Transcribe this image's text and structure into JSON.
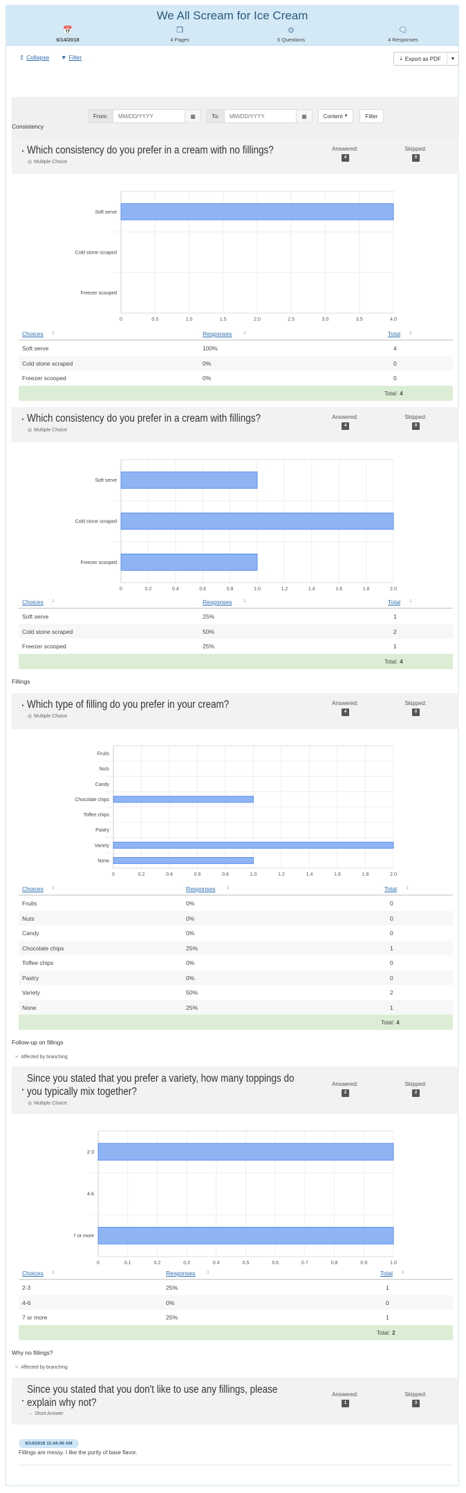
{
  "header": {
    "title": "We All Scream for Ice Cream",
    "stats": [
      {
        "icon": "calendar-icon",
        "glyph": "📅",
        "label": "6/14/2018"
      },
      {
        "icon": "pages-icon",
        "glyph": "❐",
        "label": "4 Pages"
      },
      {
        "icon": "question-target-icon",
        "glyph": "⊙",
        "label": "5 Questions"
      },
      {
        "icon": "chat-bubbles-icon",
        "glyph": "🗨",
        "label": "4 Responses"
      }
    ]
  },
  "toolbar": {
    "collapse": "Collapse",
    "filter": "Filter",
    "export": "Export as PDF"
  },
  "filter_panel": {
    "from_label": "From:",
    "from_placeholder": "MM/DD/YYYY",
    "to_label": "To:",
    "to_placeholder": "MM/DD/YYYY",
    "content": "Content",
    "filter": "Filter"
  },
  "colors": {
    "header_bg": "#d4e9f6",
    "bar": "#8fb4f4",
    "bar_border": "#5b8ef0",
    "total_row": "#dcedd5"
  },
  "sections": [
    {
      "label": "Consistency"
    },
    {
      "label": "Fillings"
    },
    {
      "label": "Follow-up on fillings",
      "branching": "Affected by branching"
    },
    {
      "label": "Why no fillings?",
      "branching": "Affected by branching"
    }
  ],
  "questions": [
    {
      "title": "Which consistency do you prefer in a cream with no fillings?",
      "type": "Multiple Choice",
      "answered_label": "Answered:",
      "answered": "4",
      "skipped_label": "Skipped:",
      "skipped": "0",
      "table_headers": [
        "Choices",
        "Responses",
        "Total"
      ],
      "rows": [
        [
          "Soft serve",
          "100%",
          "4"
        ],
        [
          "Cold stone scraped",
          "0%",
          "0"
        ],
        [
          "Freezer scooped",
          "0%",
          "0"
        ]
      ],
      "total_label": "Total:",
      "total": "4"
    },
    {
      "title": "Which consistency do you prefer in a cream with fillings?",
      "type": "Multiple Choice",
      "answered_label": "Answered:",
      "answered": "4",
      "skipped_label": "Skipped:",
      "skipped": "0",
      "table_headers": [
        "Choices",
        "Responses",
        "Total"
      ],
      "rows": [
        [
          "Soft serve",
          "25%",
          "1"
        ],
        [
          "Cold stone scraped",
          "50%",
          "2"
        ],
        [
          "Freezer scooped",
          "25%",
          "1"
        ]
      ],
      "total_label": "Total:",
      "total": "4"
    },
    {
      "title": "Which type of filling do you prefer in your cream?",
      "type": "Multiple Choice",
      "answered_label": "Answered:",
      "answered": "4",
      "skipped_label": "Skipped:",
      "skipped": "0",
      "table_headers": [
        "Choices",
        "Responses",
        "Total"
      ],
      "rows": [
        [
          "Fruits",
          "0%",
          "0"
        ],
        [
          "Nuts",
          "0%",
          "0"
        ],
        [
          "Candy",
          "0%",
          "0"
        ],
        [
          "Chocolate chips",
          "25%",
          "1"
        ],
        [
          "Toffee chips",
          "0%",
          "0"
        ],
        [
          "Pastry",
          "0%",
          "0"
        ],
        [
          "Variety",
          "50%",
          "2"
        ],
        [
          "None",
          "25%",
          "1"
        ]
      ],
      "total_label": "Total:",
      "total": "4"
    },
    {
      "title": "Since you stated that you prefer a variety, how many toppings do you typically mix together?",
      "type": "Multiple Choice",
      "answered_label": "Answered:",
      "answered": "2",
      "skipped_label": "Skipped:",
      "skipped": "2",
      "table_headers": [
        "Choices",
        "Responses",
        "Total"
      ],
      "rows": [
        [
          "2-3",
          "25%",
          "1"
        ],
        [
          "4-6",
          "0%",
          "0"
        ],
        [
          "7 or more",
          "25%",
          "1"
        ]
      ],
      "total_label": "Total:",
      "total": "2"
    },
    {
      "title": "Since you stated that you don't like to use any fillings, please explain why not?",
      "type": "Short Answer",
      "answered_label": "Answered:",
      "answered": "1",
      "skipped_label": "Skipped:",
      "skipped": "3",
      "responses": [
        {
          "timestamp": "6/14/2018 11:44:40 AM",
          "text": "Fillings are messy. I like the purity of base flavor."
        }
      ]
    }
  ],
  "chart_data": [
    {
      "type": "bar",
      "orientation": "horizontal",
      "categories": [
        "Soft serve",
        "Cold stone scraped",
        "Freezer scooped"
      ],
      "values": [
        4,
        0,
        0
      ],
      "xlim": [
        0,
        4
      ],
      "xticks": [
        "0",
        "0.5",
        "1.0",
        "1.5",
        "2.0",
        "2.5",
        "3.0",
        "3.5",
        "4.0"
      ],
      "grid": true
    },
    {
      "type": "bar",
      "orientation": "horizontal",
      "categories": [
        "Soft serve",
        "Cold stone scraped",
        "Freezer scooped"
      ],
      "values": [
        1,
        2,
        1
      ],
      "xlim": [
        0,
        2
      ],
      "xticks": [
        "0",
        "0.2",
        "0.4",
        "0.6",
        "0.8",
        "1.0",
        "1.2",
        "1.4",
        "1.6",
        "1.8",
        "2.0"
      ],
      "grid": true
    },
    {
      "type": "bar",
      "orientation": "horizontal",
      "categories": [
        "Fruits",
        "Nuts",
        "Candy",
        "Chocolate chips",
        "Toffee chips",
        "Pastry",
        "Variety",
        "None"
      ],
      "values": [
        0,
        0,
        0,
        1,
        0,
        0,
        2,
        1
      ],
      "xlim": [
        0,
        2
      ],
      "xticks": [
        "0",
        "0.2",
        "0.4",
        "0.6",
        "0.8",
        "1.0",
        "1.2",
        "1.4",
        "1.6",
        "1.8",
        "2.0"
      ],
      "grid": true
    },
    {
      "type": "bar",
      "orientation": "horizontal",
      "categories": [
        "2-3",
        "4-6",
        "7 or more"
      ],
      "values": [
        1,
        0,
        1
      ],
      "xlim": [
        0,
        1
      ],
      "xticks": [
        "0",
        "0.1",
        "0.2",
        "0.3",
        "0.4",
        "0.5",
        "0.6",
        "0.7",
        "0.8",
        "0.9",
        "1.0"
      ],
      "grid": true
    }
  ]
}
